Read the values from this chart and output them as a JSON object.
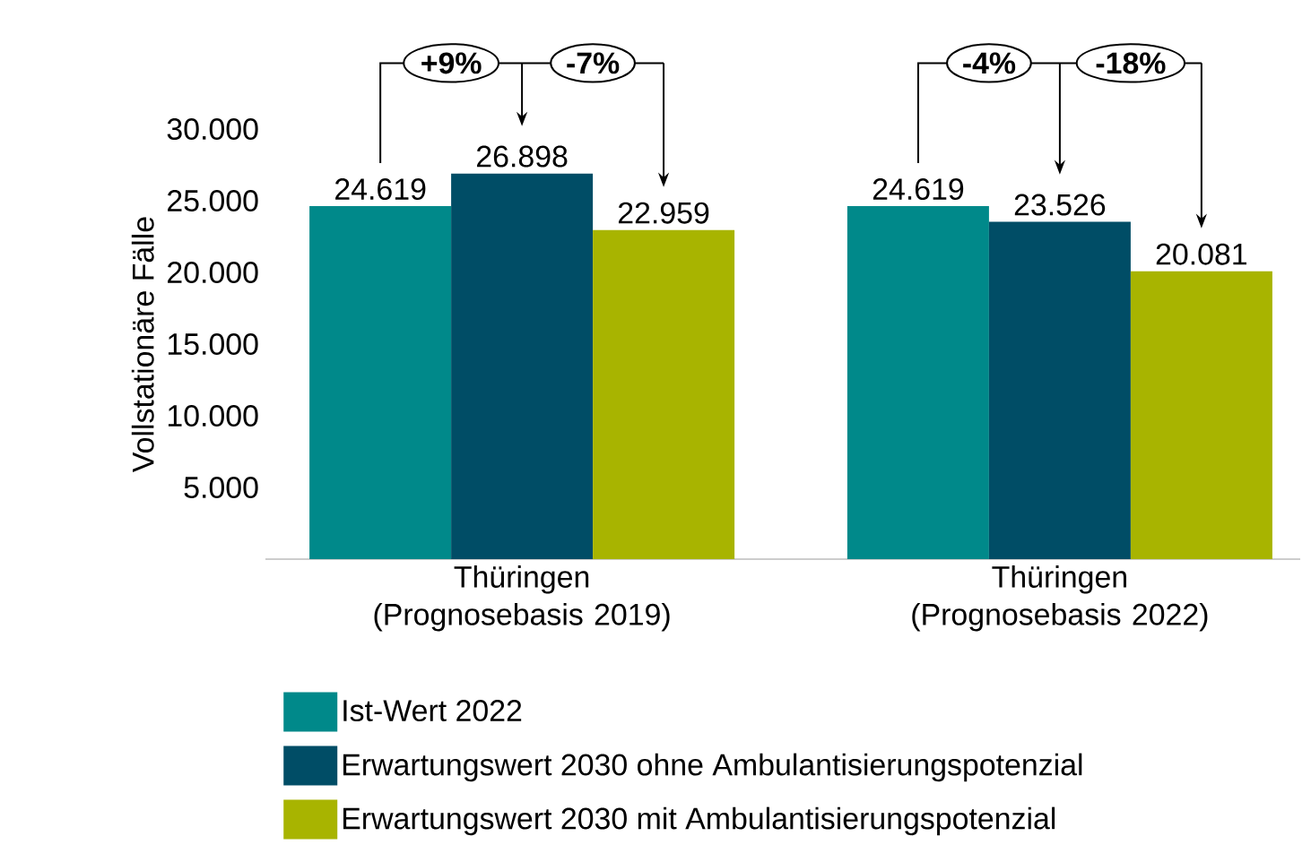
{
  "chart_data": {
    "type": "bar",
    "ylabel": "Vollstationäre Fälle",
    "categories": [
      "Thüringen (Prognosebasis 2019)",
      "Thüringen (Prognosebasis 2022)"
    ],
    "series": [
      {
        "name": "Ist-Wert 2022",
        "color": "#00898a",
        "values": [
          24619,
          24619
        ],
        "value_labels": [
          "24.619",
          "24.619"
        ]
      },
      {
        "name": "Erwartungswert 2030 ohne Ambulantisierungspotenzial",
        "color": "#004d66",
        "values": [
          26898,
          23526
        ],
        "value_labels": [
          "26.898",
          "23.526"
        ]
      },
      {
        "name": "Erwartungswert 2030 mit Ambulantisierungspotenzial",
        "color": "#a8b400",
        "values": [
          22959,
          20081
        ],
        "value_labels": [
          "22.959",
          "20.081"
        ]
      }
    ],
    "ylim": [
      0,
      30000
    ],
    "yticks": [
      {
        "value": 5000,
        "label": "5.000"
      },
      {
        "value": 10000,
        "label": "10.000"
      },
      {
        "value": 15000,
        "label": "15.000"
      },
      {
        "value": 20000,
        "label": "20.000"
      },
      {
        "value": 25000,
        "label": "25.000"
      },
      {
        "value": 30000,
        "label": "30.000"
      }
    ],
    "annotations": [
      "+9%",
      "-7%",
      "-4%",
      "-18%"
    ],
    "legend": "bottom",
    "grid": false
  }
}
